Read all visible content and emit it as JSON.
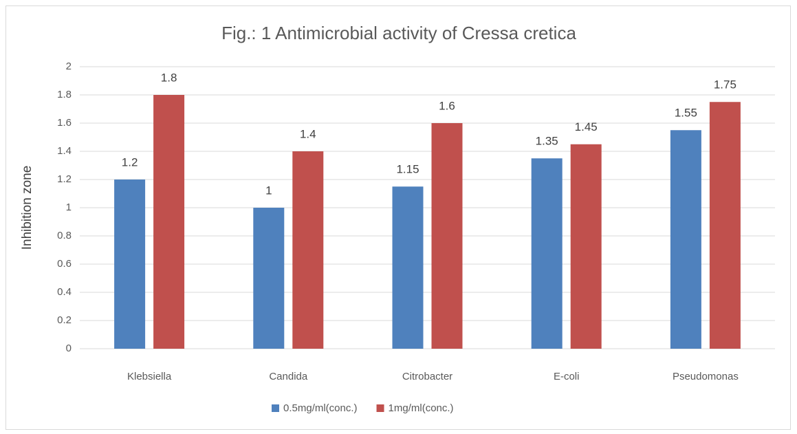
{
  "chart_data": {
    "type": "bar",
    "title": "Fig.: 1 Antimicrobial activity of Cressa cretica",
    "ylabel": "Inhibition zone",
    "categories": [
      "Klebsiella",
      "Candida",
      "Citrobacter",
      "E-coli",
      "Pseudomonas"
    ],
    "series": [
      {
        "name": "0.5mg/ml(conc.)",
        "color": "#4f81bd",
        "values": [
          1.2,
          1,
          1.15,
          1.35,
          1.55
        ]
      },
      {
        "name": "1mg/ml(conc.)",
        "color": "#c0504d",
        "values": [
          1.8,
          1.4,
          1.6,
          1.45,
          1.75
        ]
      }
    ],
    "ylim": [
      0,
      2
    ],
    "yticks": [
      0,
      0.2,
      0.4,
      0.6,
      0.8,
      1,
      1.2,
      1.4,
      1.6,
      1.8,
      2
    ],
    "grid": true,
    "legend": "bottom"
  }
}
